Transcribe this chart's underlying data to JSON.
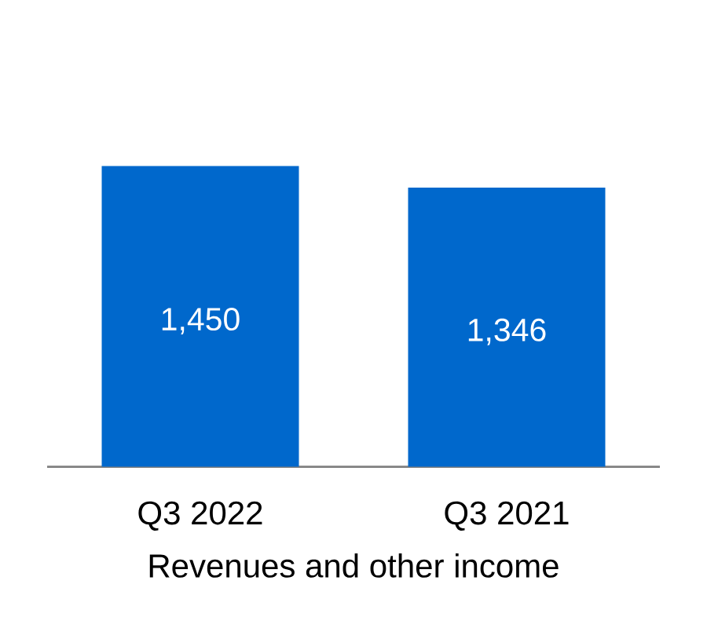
{
  "chart_data": {
    "type": "bar",
    "categories": [
      "Q3 2022",
      "Q3 2021"
    ],
    "values": [
      1450,
      1346
    ],
    "value_labels": [
      "1,450",
      "1,346"
    ],
    "color": "#0068cc",
    "xlabel": "Revenues and other income"
  }
}
